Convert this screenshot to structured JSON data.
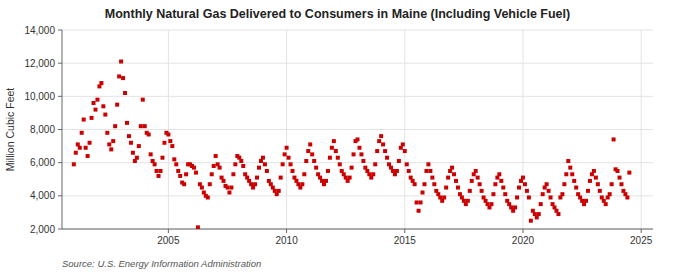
{
  "chart_data": {
    "type": "scatter",
    "title": "Monthly Natural Gas Delivered to Consumers in Maine (Including Vehicle Fuel)",
    "y_label": "Million Cubic Feet",
    "annotations": [
      "Source: U.S. Energy Information Administration"
    ],
    "color": "#cc0000",
    "marker": "square",
    "grid": true,
    "xlim": [
      2000.5,
      2025.5
    ],
    "xticks": [
      2005,
      2010,
      2015,
      2020,
      2025
    ],
    "ylim": [
      2000,
      14000
    ],
    "yticks": [
      {
        "value": 2000,
        "label": "2,000"
      },
      {
        "value": 4000,
        "label": "4,000"
      },
      {
        "value": 6000,
        "label": "6,000"
      },
      {
        "value": 8000,
        "label": "8,000"
      },
      {
        "value": 10000,
        "label": "10,000"
      },
      {
        "value": 12000,
        "label": "12,000"
      },
      {
        "value": 14000,
        "label": "14,000"
      }
    ],
    "x": [
      2001.0,
      2001.083,
      2001.167,
      2001.25,
      2001.333,
      2001.417,
      2001.5,
      2001.583,
      2001.667,
      2001.75,
      2001.833,
      2001.917,
      2002.0,
      2002.083,
      2002.167,
      2002.25,
      2002.333,
      2002.417,
      2002.5,
      2002.583,
      2002.667,
      2002.75,
      2002.833,
      2002.917,
      2003.0,
      2003.083,
      2003.167,
      2003.25,
      2003.333,
      2003.417,
      2003.5,
      2003.583,
      2003.667,
      2003.75,
      2003.833,
      2003.917,
      2004.0,
      2004.083,
      2004.167,
      2004.25,
      2004.333,
      2004.417,
      2004.5,
      2004.583,
      2004.667,
      2004.75,
      2004.833,
      2004.917,
      2005.0,
      2005.083,
      2005.167,
      2005.25,
      2005.333,
      2005.417,
      2005.5,
      2005.583,
      2005.667,
      2005.75,
      2005.833,
      2005.917,
      2006.0,
      2006.083,
      2006.167,
      2006.25,
      2006.333,
      2006.417,
      2006.5,
      2006.583,
      2006.667,
      2006.75,
      2006.833,
      2006.917,
      2007.0,
      2007.083,
      2007.167,
      2007.25,
      2007.333,
      2007.417,
      2007.5,
      2007.583,
      2007.667,
      2007.75,
      2007.833,
      2007.917,
      2008.0,
      2008.083,
      2008.167,
      2008.25,
      2008.333,
      2008.417,
      2008.5,
      2008.583,
      2008.667,
      2008.75,
      2008.833,
      2008.917,
      2009.0,
      2009.083,
      2009.167,
      2009.25,
      2009.333,
      2009.417,
      2009.5,
      2009.583,
      2009.667,
      2009.75,
      2009.833,
      2009.917,
      2010.0,
      2010.083,
      2010.167,
      2010.25,
      2010.333,
      2010.417,
      2010.5,
      2010.583,
      2010.667,
      2010.75,
      2010.833,
      2010.917,
      2011.0,
      2011.083,
      2011.167,
      2011.25,
      2011.333,
      2011.417,
      2011.5,
      2011.583,
      2011.667,
      2011.75,
      2011.833,
      2011.917,
      2012.0,
      2012.083,
      2012.167,
      2012.25,
      2012.333,
      2012.417,
      2012.5,
      2012.583,
      2012.667,
      2012.75,
      2012.833,
      2012.917,
      2013.0,
      2013.083,
      2013.167,
      2013.25,
      2013.333,
      2013.417,
      2013.5,
      2013.583,
      2013.667,
      2013.75,
      2013.833,
      2013.917,
      2014.0,
      2014.083,
      2014.167,
      2014.25,
      2014.333,
      2014.417,
      2014.5,
      2014.583,
      2014.667,
      2014.75,
      2014.833,
      2014.917,
      2015.0,
      2015.083,
      2015.167,
      2015.25,
      2015.333,
      2015.417,
      2015.5,
      2015.583,
      2015.667,
      2015.75,
      2015.833,
      2015.917,
      2016.0,
      2016.083,
      2016.167,
      2016.25,
      2016.333,
      2016.417,
      2016.5,
      2016.583,
      2016.667,
      2016.75,
      2016.833,
      2016.917,
      2017.0,
      2017.083,
      2017.167,
      2017.25,
      2017.333,
      2017.417,
      2017.5,
      2017.583,
      2017.667,
      2017.75,
      2017.833,
      2017.917,
      2018.0,
      2018.083,
      2018.167,
      2018.25,
      2018.333,
      2018.417,
      2018.5,
      2018.583,
      2018.667,
      2018.75,
      2018.833,
      2018.917,
      2019.0,
      2019.083,
      2019.167,
      2019.25,
      2019.333,
      2019.417,
      2019.5,
      2019.583,
      2019.667,
      2019.75,
      2019.833,
      2019.917,
      2020.0,
      2020.083,
      2020.167,
      2020.25,
      2020.333,
      2020.417,
      2020.5,
      2020.583,
      2020.667,
      2020.75,
      2020.833,
      2020.917,
      2021.0,
      2021.083,
      2021.167,
      2021.25,
      2021.333,
      2021.417,
      2021.5,
      2021.583,
      2021.667,
      2021.75,
      2021.833,
      2021.917,
      2022.0,
      2022.083,
      2022.167,
      2022.25,
      2022.333,
      2022.417,
      2022.5,
      2022.583,
      2022.667,
      2022.75,
      2022.833,
      2022.917,
      2023.0,
      2023.083,
      2023.167,
      2023.25,
      2023.333,
      2023.417,
      2023.5,
      2023.583,
      2023.667,
      2023.75,
      2023.833,
      2023.917,
      2024.0,
      2024.083,
      2024.167,
      2024.25,
      2024.333,
      2024.417,
      2024.5
    ],
    "values": [
      5900,
      6600,
      7100,
      6900,
      7800,
      8600,
      6900,
      6400,
      7200,
      8700,
      9600,
      9200,
      9800,
      10600,
      10800,
      9400,
      8900,
      7800,
      7100,
      6800,
      7300,
      8200,
      9500,
      11200,
      12100,
      11100,
      10200,
      8400,
      7600,
      7200,
      6600,
      6100,
      6300,
      7000,
      8200,
      9800,
      8200,
      7800,
      7700,
      6500,
      6100,
      5900,
      5500,
      5200,
      5500,
      6300,
      7200,
      7800,
      7700,
      7300,
      7000,
      6200,
      5900,
      5500,
      5200,
      4800,
      4700,
      5300,
      5900,
      5900,
      5800,
      5700,
      5400,
      2100,
      4700,
      4500,
      4200,
      4000,
      3900,
      4700,
      5300,
      5800,
      6400,
      5900,
      5700,
      5100,
      4900,
      4600,
      4500,
      4200,
      4500,
      5300,
      5900,
      6400,
      6300,
      6100,
      5800,
      5300,
      5100,
      4900,
      4700,
      4500,
      4700,
      5100,
      5700,
      6100,
      6300,
      5900,
      5500,
      4900,
      4700,
      4500,
      4300,
      4100,
      4300,
      5100,
      5900,
      6500,
      6900,
      6300,
      5900,
      5500,
      5100,
      4900,
      4700,
      4500,
      4700,
      5300,
      6100,
      6700,
      7100,
      6500,
      6100,
      5700,
      5300,
      5100,
      4900,
      4700,
      4900,
      5500,
      6300,
      6900,
      7300,
      6700,
      6300,
      5900,
      5500,
      5300,
      5100,
      4900,
      5100,
      5700,
      6500,
      7300,
      7400,
      6900,
      6500,
      6100,
      5700,
      5500,
      5300,
      5100,
      5300,
      5900,
      6700,
      7300,
      7600,
      7100,
      6700,
      6300,
      5900,
      5700,
      5500,
      5300,
      5500,
      6100,
      6900,
      7100,
      6700,
      5900,
      5500,
      5100,
      4900,
      4700,
      3600,
      3100,
      3600,
      4200,
      4700,
      5500,
      5900,
      5500,
      5100,
      4700,
      4300,
      4100,
      3900,
      3700,
      3900,
      4500,
      5100,
      5500,
      5700,
      5300,
      4900,
      4500,
      4100,
      3900,
      3700,
      3500,
      3700,
      4300,
      4900,
      5300,
      5500,
      5100,
      4700,
      4300,
      3900,
      3700,
      3500,
      3300,
      3500,
      4100,
      4700,
      5100,
      5300,
      4900,
      4500,
      4100,
      3700,
      3500,
      3300,
      3100,
      3300,
      3900,
      4500,
      4900,
      5100,
      4700,
      4300,
      3900,
      2500,
      3100,
      2900,
      2700,
      2900,
      3500,
      4100,
      4500,
      4700,
      4300,
      3900,
      3500,
      3300,
      3100,
      2900,
      3900,
      4100,
      4700,
      5300,
      6100,
      5700,
      5300,
      4900,
      4500,
      4100,
      3900,
      3700,
      3500,
      3700,
      4300,
      4900,
      5300,
      5500,
      5100,
      4700,
      4300,
      3900,
      3700,
      3500,
      3900,
      4100,
      4700,
      7400,
      5600,
      5500,
      5100,
      4700,
      4300,
      4100,
      3900,
      5400
    ]
  }
}
